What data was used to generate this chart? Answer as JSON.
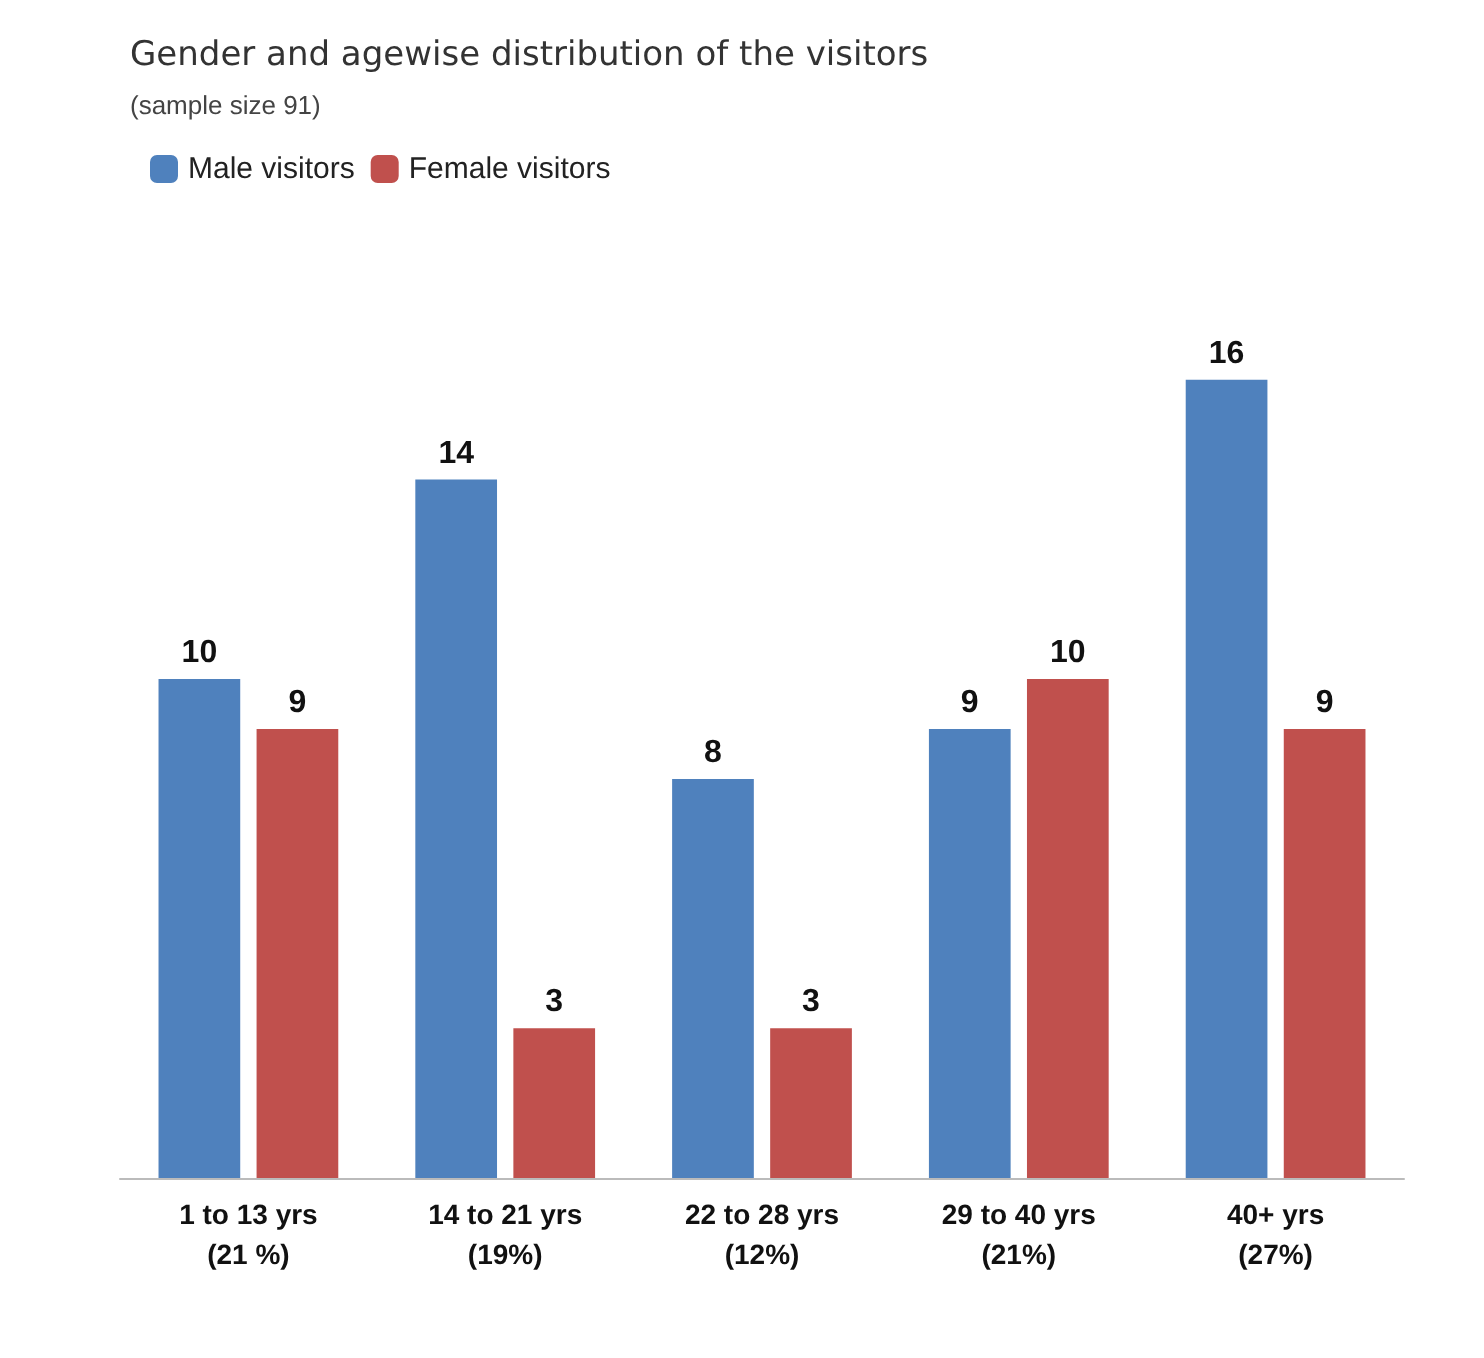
{
  "chart_data": {
    "type": "bar",
    "title": "Gender and agewise distribution of the visitors",
    "subtitle": "(sample size 91)",
    "categories": [
      "1 to 13 yrs\n(21 %)",
      "14 to 21 yrs\n(19%)",
      "22 to 28 yrs\n(12%)",
      "29 to 40 yrs\n(21%)",
      "40+ yrs\n(27%)"
    ],
    "series": [
      {
        "name": "Male visitors",
        "color": "#4f81bd",
        "values": [
          10,
          14,
          8,
          9,
          16
        ]
      },
      {
        "name": "Female visitors",
        "color": "#c0504d",
        "values": [
          9,
          3,
          3,
          10,
          9
        ]
      }
    ],
    "data_labels": true,
    "legend": "top left"
  }
}
